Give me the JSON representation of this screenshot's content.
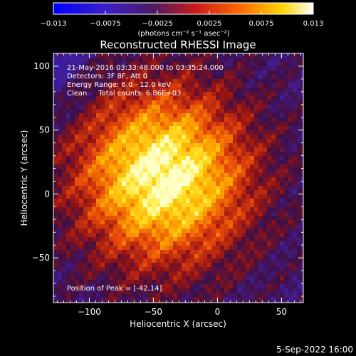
{
  "colorbar": {
    "tick_labels": [
      "−0.013",
      "−0.0075",
      "−0.0025",
      "0.0025",
      "0.0075",
      "0.013"
    ],
    "unit_label": "(photons cm⁻² s⁻¹ asec⁻²)",
    "range": [
      -0.013,
      0.013
    ]
  },
  "chart_data": {
    "type": "heatmap",
    "title": "Reconstructed RHESSI Image",
    "xlabel": "Heliocentric X (arcsec)",
    "ylabel": "Heliocentric Y (arcsec)",
    "xlim": [
      -128,
      67
    ],
    "ylim": [
      -85,
      110
    ],
    "x_ticks": [
      -100,
      -50,
      0,
      50
    ],
    "x_tick_labels": [
      "−100",
      "−50",
      "0",
      "50"
    ],
    "y_ticks": [
      -50,
      0,
      50,
      100
    ],
    "y_tick_labels": [
      "−50",
      "0",
      "50",
      "100"
    ],
    "colormap": "RHESSI hot-ish (blue→purple→red→orange→yellow→white)",
    "peak": [
      -42,
      14
    ],
    "annotations": [
      "21-May-2016 03:33:48.000 to 03:35:24.000",
      "Detectors: 3F 8F, Att 0",
      "Energy Range: 6.0 - 12.0 keV",
      "Clean     Total counts: 6.86E+03"
    ],
    "peak_label": "Position of Peak = [-42,14]"
  },
  "footer_date": "5-Sep-2022 16:00"
}
